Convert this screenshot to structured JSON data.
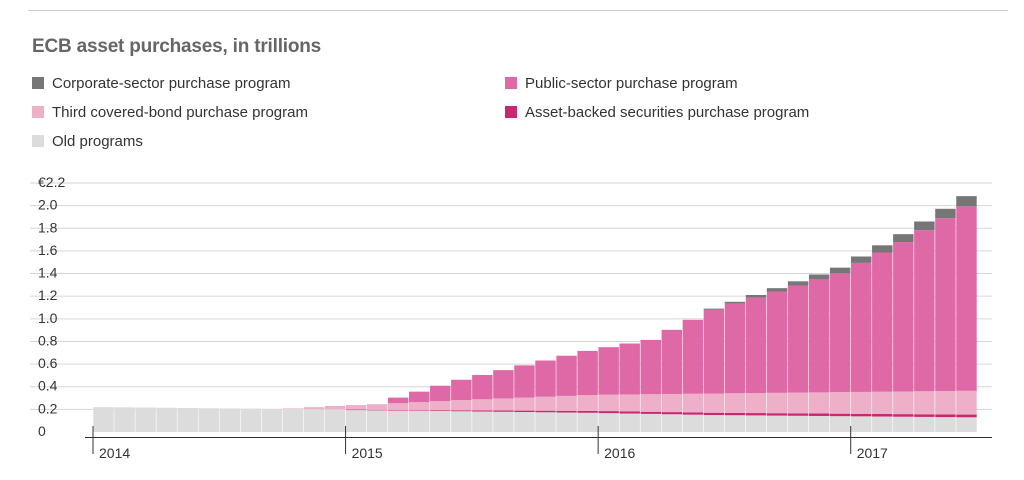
{
  "chart_data": {
    "type": "bar",
    "stacked": true,
    "title": "ECB asset purchases, in trillions",
    "y_ticks": [
      "€2.2",
      "2.0",
      "1.8",
      "1.6",
      "1.4",
      "1.2",
      "1.0",
      "0.8",
      "0.6",
      "0.4",
      "0.2",
      "0"
    ],
    "ylim": [
      0,
      2.2
    ],
    "x_ticks": [
      "2014",
      "2015",
      "2016",
      "2017"
    ],
    "xlim": [
      "2014-01",
      "2017-07"
    ],
    "grid": true,
    "legend": {
      "placement": "top"
    },
    "series": [
      {
        "key": "old",
        "name": "Old programs",
        "color": "#dcdcdc",
        "points": [
          [
            "2014-01",
            0.22
          ],
          [
            "2014-06",
            0.21
          ],
          [
            "2014-12",
            0.2
          ],
          [
            "2015-03",
            0.19
          ],
          [
            "2015-12",
            0.17
          ],
          [
            "2016-06",
            0.15
          ],
          [
            "2017-06",
            0.13
          ]
        ]
      },
      {
        "key": "abs",
        "name": "Asset-backed securities purchase program",
        "color": "#c9276f",
        "points": [
          [
            "2014-01",
            0
          ],
          [
            "2014-11",
            0
          ],
          [
            "2014-12",
            0.0
          ],
          [
            "2015-03",
            0.004
          ],
          [
            "2015-06",
            0.008
          ],
          [
            "2016-01",
            0.018
          ],
          [
            "2016-06",
            0.02
          ],
          [
            "2017-06",
            0.024
          ]
        ]
      },
      {
        "key": "cbpp",
        "name": "Third covered-bond purchase program",
        "color": "#eeafc8",
        "points": [
          [
            "2014-01",
            0
          ],
          [
            "2014-09",
            0
          ],
          [
            "2014-10",
            0.005
          ],
          [
            "2014-12",
            0.03
          ],
          [
            "2015-03",
            0.06
          ],
          [
            "2015-06",
            0.09
          ],
          [
            "2015-12",
            0.14
          ],
          [
            "2016-06",
            0.17
          ],
          [
            "2017-06",
            0.21
          ]
        ]
      },
      {
        "key": "pspp",
        "name": "Public-sector purchase program",
        "color": "#df68a7",
        "points": [
          [
            "2015-02",
            0
          ],
          [
            "2015-03",
            0.05
          ],
          [
            "2015-06",
            0.18
          ],
          [
            "2015-12",
            0.39
          ],
          [
            "2016-03",
            0.48
          ],
          [
            "2016-06",
            0.74
          ],
          [
            "2016-12",
            1.05
          ],
          [
            "2017-03",
            1.32
          ],
          [
            "2017-06",
            1.63
          ]
        ]
      },
      {
        "key": "cspp",
        "name": "Corporate-sector purchase program",
        "color": "#767676",
        "points": [
          [
            "2016-05",
            0
          ],
          [
            "2016-06",
            0.01
          ],
          [
            "2016-09",
            0.03
          ],
          [
            "2016-12",
            0.05
          ],
          [
            "2017-03",
            0.07
          ],
          [
            "2017-06",
            0.09
          ]
        ]
      }
    ]
  }
}
